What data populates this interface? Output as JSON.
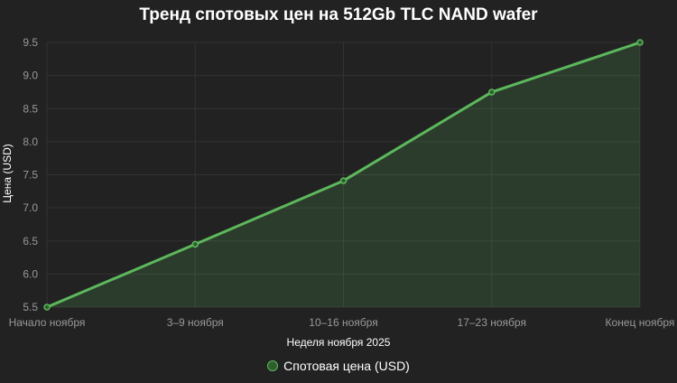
{
  "chart_data": {
    "type": "line",
    "title": "Тренд спотовых цен на 512Gb TLC NAND wafer",
    "xlabel": "Неделя ноября 2025",
    "ylabel": "Цена (USD)",
    "categories": [
      "Начало ноября",
      "3–9 ноября",
      "10–16 ноября",
      "17–23 ноября",
      "Конец ноября"
    ],
    "series": [
      {
        "name": "Спотовая цена (USD)",
        "values": [
          5.5,
          6.45,
          7.41,
          8.75,
          9.5
        ],
        "color": "#5cb85c",
        "fill": true
      }
    ],
    "yticks": [
      "5.5",
      "6.0",
      "6.5",
      "7.0",
      "7.5",
      "8.0",
      "8.5",
      "9.0",
      "9.5"
    ],
    "ylim": [
      5.5,
      9.5
    ],
    "grid": true,
    "legend_position": "bottom"
  },
  "colors": {
    "background": "#222222",
    "line": "#5cb85c",
    "fill": "rgba(92,184,92,0.18)",
    "grid": "#333333",
    "tick_text": "#999999"
  }
}
